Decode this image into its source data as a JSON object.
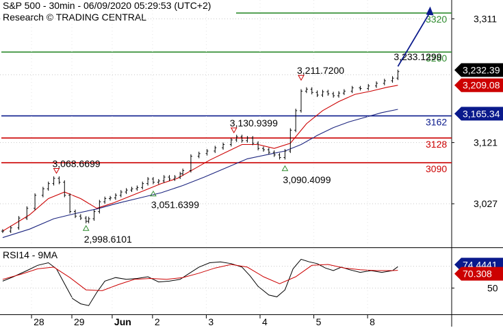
{
  "header": {
    "title": "S&P 500 - 30min - 06/09/2020 05:29:53 (UTC+2)",
    "subtitle": "Research © TRADING CENTRAL"
  },
  "colors": {
    "price": "#000000",
    "ma_fast": "#cc0000",
    "ma_slow": "#1a237e",
    "target": "#2e8b2e",
    "support": "#cc0000",
    "pivot": "#0a1a8c",
    "arrow": "#0a1a8c",
    "marker_high": "#cc0000",
    "marker_low": "#2e8b2e"
  },
  "chart_data": [
    {
      "type": "line",
      "name": "price",
      "title": "S&P 500 - 30min - 06/09/2020 05:29:53 (UTC+2)",
      "ylim": [
        2960,
        3340
      ],
      "y_ticks": [
        {
          "label": "3,311",
          "value": 3311
        },
        {
          "label": "3,121",
          "value": 3121
        },
        {
          "label": "3,027",
          "value": 3027
        }
      ],
      "x_ticks": [
        "28",
        "29",
        "Jun",
        "2",
        "3",
        "4",
        "5",
        "8"
      ],
      "x_tick_positions": [
        0.5,
        2,
        3.5,
        5,
        7,
        9,
        11,
        13
      ],
      "x_range": [
        -0.8,
        16
      ],
      "close": [
        [
          -0.7,
          2985
        ],
        [
          -0.4,
          2990
        ],
        [
          -0.1,
          3005
        ],
        [
          0.2,
          3020
        ],
        [
          0.5,
          3040
        ],
        [
          0.8,
          3050
        ],
        [
          1.0,
          3058
        ],
        [
          1.2,
          3066
        ],
        [
          1.4,
          3060
        ],
        [
          1.6,
          3040
        ],
        [
          1.8,
          3015
        ],
        [
          2.0,
          3008
        ],
        [
          2.2,
          3005
        ],
        [
          2.4,
          3000
        ],
        [
          2.5,
          3004
        ],
        [
          2.7,
          3015
        ],
        [
          2.9,
          3030
        ],
        [
          3.1,
          3035
        ],
        [
          3.3,
          3036
        ],
        [
          3.5,
          3040
        ],
        [
          3.7,
          3045
        ],
        [
          3.9,
          3048
        ],
        [
          4.1,
          3050
        ],
        [
          4.3,
          3052
        ],
        [
          4.5,
          3058
        ],
        [
          4.7,
          3065
        ],
        [
          4.9,
          3060
        ],
        [
          5.1,
          3062
        ],
        [
          5.3,
          3068
        ],
        [
          5.5,
          3065
        ],
        [
          5.7,
          3068
        ],
        [
          5.9,
          3073
        ],
        [
          6.0,
          3078
        ],
        [
          6.3,
          3100
        ],
        [
          6.6,
          3104
        ],
        [
          6.9,
          3108
        ],
        [
          7.2,
          3113
        ],
        [
          7.5,
          3118
        ],
        [
          7.8,
          3125
        ],
        [
          8.0,
          3130
        ],
        [
          8.2,
          3124
        ],
        [
          8.4,
          3128
        ],
        [
          8.6,
          3120
        ],
        [
          8.8,
          3112
        ],
        [
          9.0,
          3110
        ],
        [
          9.2,
          3106
        ],
        [
          9.4,
          3102
        ],
        [
          9.6,
          3098
        ],
        [
          9.8,
          3108
        ],
        [
          10.0,
          3140
        ],
        [
          10.2,
          3170
        ],
        [
          10.4,
          3200
        ],
        [
          10.6,
          3203
        ],
        [
          10.8,
          3198
        ],
        [
          11.0,
          3194
        ],
        [
          11.2,
          3199
        ],
        [
          11.4,
          3196
        ],
        [
          11.6,
          3193
        ],
        [
          11.8,
          3197
        ],
        [
          12.0,
          3200
        ],
        [
          12.3,
          3205
        ],
        [
          12.6,
          3204
        ],
        [
          12.9,
          3208
        ],
        [
          13.2,
          3212
        ],
        [
          13.5,
          3216
        ],
        [
          13.8,
          3220
        ],
        [
          14.0,
          3230
        ]
      ],
      "ma_fast": [
        [
          -0.7,
          2985
        ],
        [
          0.3,
          3010
        ],
        [
          1.0,
          3035
        ],
        [
          1.6,
          3045
        ],
        [
          2.2,
          3035
        ],
        [
          2.8,
          3020
        ],
        [
          3.4,
          3028
        ],
        [
          4.0,
          3038
        ],
        [
          4.6,
          3048
        ],
        [
          5.2,
          3058
        ],
        [
          5.8,
          3066
        ],
        [
          6.4,
          3080
        ],
        [
          7.0,
          3094
        ],
        [
          7.6,
          3106
        ],
        [
          8.2,
          3118
        ],
        [
          8.8,
          3118
        ],
        [
          9.4,
          3112
        ],
        [
          10.0,
          3120
        ],
        [
          10.6,
          3150
        ],
        [
          11.2,
          3170
        ],
        [
          11.8,
          3184
        ],
        [
          12.4,
          3195
        ],
        [
          13.0,
          3200
        ],
        [
          13.6,
          3206
        ],
        [
          14.0,
          3209
        ]
      ],
      "ma_slow": [
        [
          -0.7,
          2975
        ],
        [
          0.3,
          2988
        ],
        [
          1.2,
          3004
        ],
        [
          2.0,
          3012
        ],
        [
          2.8,
          3019
        ],
        [
          3.6,
          3028
        ],
        [
          4.4,
          3036
        ],
        [
          5.2,
          3044
        ],
        [
          6.0,
          3055
        ],
        [
          6.8,
          3068
        ],
        [
          7.6,
          3082
        ],
        [
          8.4,
          3096
        ],
        [
          9.2,
          3103
        ],
        [
          9.8,
          3108
        ],
        [
          10.4,
          3118
        ],
        [
          11.0,
          3132
        ],
        [
          11.6,
          3144
        ],
        [
          12.2,
          3153
        ],
        [
          12.8,
          3160
        ],
        [
          13.4,
          3167
        ],
        [
          14.0,
          3172
        ]
      ],
      "levels": [
        {
          "label": "3320",
          "value": 3320,
          "kind": "target"
        },
        {
          "label": "3260",
          "value": 3260,
          "kind": "target"
        },
        {
          "label": "3162",
          "value": 3162,
          "kind": "pivot"
        },
        {
          "label": "3128",
          "value": 3128,
          "kind": "support"
        },
        {
          "label": "3090",
          "value": 3090,
          "kind": "support"
        }
      ],
      "current_badges": [
        {
          "label": "3,232.39",
          "value": 3232.39,
          "bg": "#000000",
          "fg": "#ffffff"
        },
        {
          "label": "3,209.08",
          "value": 3209.08,
          "bg": "#cc0000",
          "fg": "#ffffff"
        },
        {
          "label": "3,165.34",
          "value": 3165.34,
          "bg": "#0a1a8c",
          "fg": "#ffffff"
        }
      ],
      "annotations": [
        {
          "label": "3,068.6699",
          "x": 1.3,
          "value": 3068.6699,
          "type": "high"
        },
        {
          "label": "2,998.6101",
          "x": 2.4,
          "value": 2998.6101,
          "type": "low"
        },
        {
          "label": "3,051.6399",
          "x": 4.9,
          "value": 3051.6399,
          "type": "low"
        },
        {
          "label": "3,130.9399",
          "x": 7.9,
          "value": 3130.9399,
          "type": "high"
        },
        {
          "label": "3,090.4099",
          "x": 9.8,
          "value": 3090.4099,
          "type": "low"
        },
        {
          "label": "3,211.7200",
          "x": 10.4,
          "value": 3211.72,
          "type": "high"
        },
        {
          "label": "3,233.1299",
          "x": 14.0,
          "value": 3233.1299,
          "type": "high"
        }
      ],
      "projection": {
        "from": [
          14.0,
          3238
        ],
        "to": [
          15.2,
          3330
        ]
      }
    },
    {
      "type": "line",
      "name": "RSI14 - 9MA",
      "title": "RSI14 - 9MA",
      "ylim": [
        20,
        95
      ],
      "y_ticks": [
        {
          "label": "50",
          "value": 50
        }
      ],
      "rsi": [
        [
          -0.7,
          58
        ],
        [
          -0.3,
          63
        ],
        [
          0.2,
          70
        ],
        [
          0.6,
          76
        ],
        [
          1.0,
          79
        ],
        [
          1.3,
          72
        ],
        [
          1.6,
          55
        ],
        [
          1.9,
          38
        ],
        [
          2.2,
          32
        ],
        [
          2.5,
          30
        ],
        [
          2.8,
          45
        ],
        [
          3.1,
          58
        ],
        [
          3.5,
          62
        ],
        [
          3.9,
          60
        ],
        [
          4.3,
          61
        ],
        [
          4.7,
          63
        ],
        [
          5.1,
          57
        ],
        [
          5.5,
          58
        ],
        [
          5.9,
          60
        ],
        [
          6.2,
          66
        ],
        [
          6.6,
          74
        ],
        [
          7.0,
          79
        ],
        [
          7.4,
          80
        ],
        [
          7.8,
          78
        ],
        [
          8.2,
          74
        ],
        [
          8.5,
          64
        ],
        [
          8.8,
          52
        ],
        [
          9.2,
          42
        ],
        [
          9.5,
          40
        ],
        [
          9.8,
          48
        ],
        [
          10.1,
          72
        ],
        [
          10.4,
          83
        ],
        [
          10.7,
          80
        ],
        [
          11.0,
          78
        ],
        [
          11.3,
          73
        ],
        [
          11.6,
          70
        ],
        [
          11.9,
          74
        ],
        [
          12.2,
          71
        ],
        [
          12.6,
          68
        ],
        [
          13.0,
          70
        ],
        [
          13.4,
          68
        ],
        [
          13.8,
          70
        ],
        [
          14.0,
          74.4441
        ]
      ],
      "rsi_ma": [
        [
          -0.7,
          60
        ],
        [
          0.0,
          66
        ],
        [
          0.6,
          72
        ],
        [
          1.2,
          74
        ],
        [
          1.8,
          62
        ],
        [
          2.4,
          48
        ],
        [
          3.0,
          47
        ],
        [
          3.6,
          54
        ],
        [
          4.2,
          60
        ],
        [
          4.8,
          61
        ],
        [
          5.4,
          60
        ],
        [
          6.0,
          62
        ],
        [
          6.6,
          67
        ],
        [
          7.2,
          73
        ],
        [
          7.8,
          77
        ],
        [
          8.4,
          74
        ],
        [
          9.0,
          63
        ],
        [
          9.6,
          55
        ],
        [
          10.2,
          63
        ],
        [
          10.8,
          76
        ],
        [
          11.4,
          77
        ],
        [
          12.0,
          73
        ],
        [
          12.6,
          71
        ],
        [
          13.2,
          70
        ],
        [
          13.8,
          70
        ],
        [
          14.0,
          70.308
        ]
      ],
      "badges": [
        {
          "label": "74.4441",
          "value": 74.4441,
          "bg": "#0a1a8c",
          "fg": "#ffffff"
        },
        {
          "label": "70.308",
          "value": 70.308,
          "bg": "#cc0000",
          "fg": "#ffffff"
        }
      ]
    }
  ]
}
